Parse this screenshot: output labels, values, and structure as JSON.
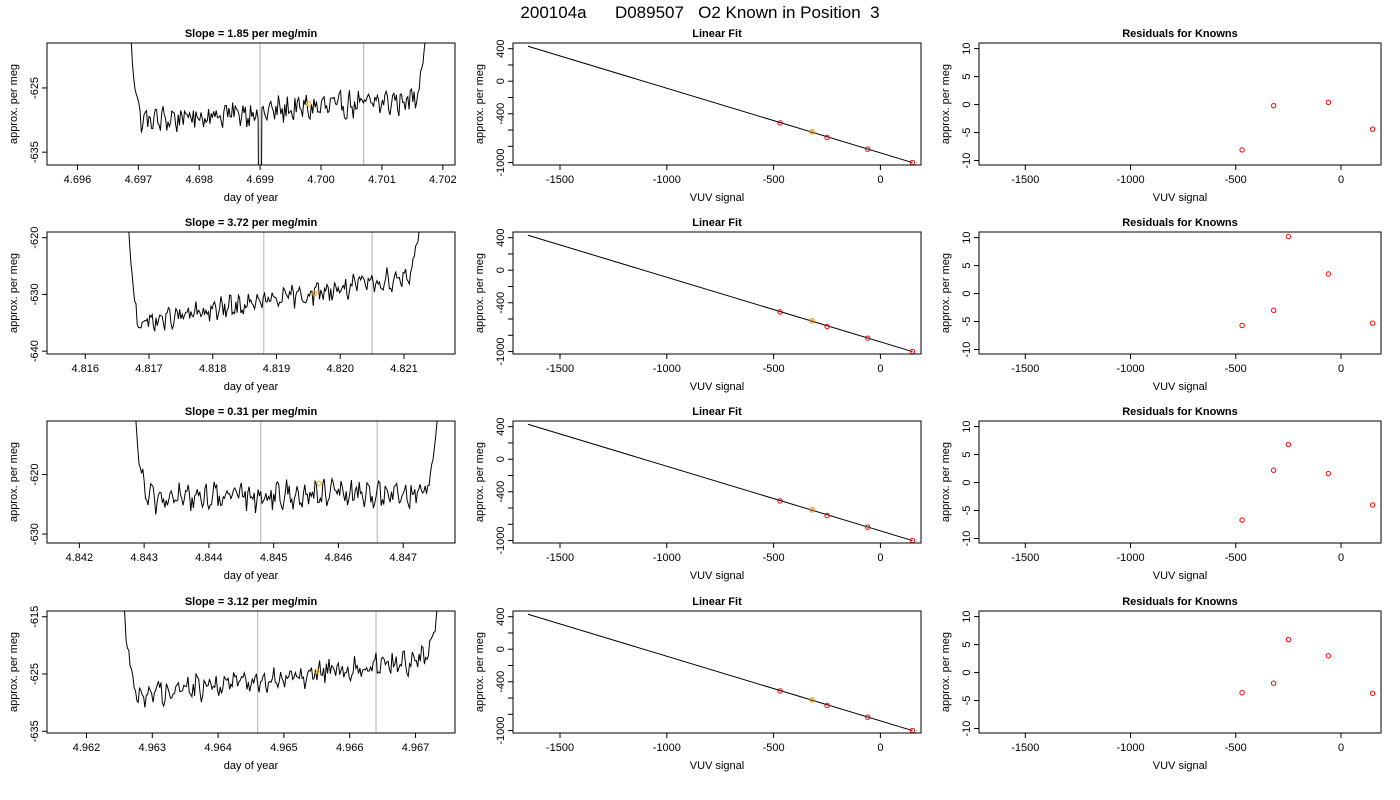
{
  "figure": {
    "title": "200104a      D089507   O2 Known in Position  3"
  },
  "colors": {
    "trace": "#000000",
    "box": "#000000",
    "window_line": "#bebebe",
    "mean_point": "#ffa500",
    "known_point": "#ff0000",
    "fit_point": "#ff0000"
  },
  "chart_data": [
    {
      "type": "line",
      "row": 1,
      "col": 1,
      "title": "Slope =  1.85  per meg/min",
      "xlabel": "day of year",
      "ylabel": "approx. per meg",
      "xlim": [
        4.6955,
        4.7022
      ],
      "ylim": [
        -637,
        -618
      ],
      "xticks": [
        4.696,
        4.697,
        4.698,
        4.699,
        4.7,
        4.701,
        4.702
      ],
      "xtick_labels": [
        "4.696",
        "4.697",
        "4.698",
        "4.699",
        "4.700",
        "4.701",
        "4.702"
      ],
      "yticks": [
        -635,
        -625
      ],
      "ytick_labels": [
        "-635",
        "-625"
      ],
      "vlines": [
        4.699,
        4.7007
      ],
      "mean_point": [
        4.6998,
        -627.5
      ],
      "trace_range": [
        4.6968,
        4.7018
      ],
      "trace_base": -628.5,
      "trace_trend": 1.85,
      "trace_amp": 1.6,
      "trace_start": -605,
      "trace_end": -605,
      "trace_dip": [
        4.699,
        -660
      ]
    },
    {
      "type": "scatter",
      "row": 1,
      "col": 2,
      "title": "Linear Fit",
      "xlabel": "VUV signal",
      "ylabel": "approx. per meg",
      "xlim": [
        -1720,
        190
      ],
      "ylim": [
        -1030,
        470
      ],
      "xticks": [
        -1500,
        -1000,
        -500,
        0
      ],
      "xtick_labels": [
        "-1500",
        "-1000",
        "-500",
        "0"
      ],
      "yticks": [
        -1000,
        -800,
        -600,
        -400,
        -200,
        0,
        200,
        400
      ],
      "ytick_labels": [
        "-1000",
        "",
        "",
        "-400",
        "",
        "0",
        "",
        "400"
      ],
      "fit_line": [
        [
          -1650,
          430
        ],
        [
          150,
          -1000
        ]
      ],
      "points": [
        [
          -470,
          -513
        ],
        [
          -320,
          -622
        ],
        [
          -250,
          -692
        ],
        [
          -60,
          -835
        ],
        [
          150,
          -1000
        ]
      ],
      "highlight_point": [
        -320,
        -622
      ]
    },
    {
      "type": "scatter",
      "row": 1,
      "col": 3,
      "title": "Residuals for Knowns",
      "xlabel": "VUV signal",
      "ylabel": "approx. per meg",
      "xlim": [
        -1720,
        190
      ],
      "ylim": [
        -10.8,
        11
      ],
      "xticks": [
        -1500,
        -1000,
        -500,
        0
      ],
      "xtick_labels": [
        "-1500",
        "-1000",
        "-500",
        "0"
      ],
      "yticks": [
        -10,
        -5,
        0,
        5,
        10
      ],
      "ytick_labels": [
        "-10",
        "-5",
        "0",
        "5",
        "10"
      ],
      "points": [
        [
          -470,
          -8.1
        ],
        [
          -320,
          -0.2
        ],
        [
          -60,
          0.4
        ],
        [
          150,
          -4.4
        ]
      ]
    },
    {
      "type": "line",
      "row": 2,
      "col": 1,
      "title": "Slope =  3.72  per meg/min",
      "xlabel": "day of year",
      "ylabel": "approx. per meg",
      "xlim": [
        4.8154,
        4.8218
      ],
      "ylim": [
        -640.5,
        -619
      ],
      "xticks": [
        4.816,
        4.817,
        4.818,
        4.819,
        4.82,
        4.821
      ],
      "xtick_labels": [
        "4.816",
        "4.817",
        "4.818",
        "4.819",
        "4.820",
        "4.821"
      ],
      "yticks": [
        -640,
        -630,
        -620
      ],
      "ytick_labels": [
        "-640",
        "-630",
        "-620"
      ],
      "vlines": [
        4.8188,
        4.8205
      ],
      "mean_point": [
        4.8196,
        -629.8
      ],
      "trace_range": [
        4.8166,
        4.8213
      ],
      "trace_base": -631.0,
      "trace_trend": 4.6,
      "trace_amp": 1.5,
      "trace_start": -600,
      "trace_end": -612,
      "trace_dip": null
    },
    {
      "type": "scatter",
      "row": 2,
      "col": 2,
      "title": "Linear Fit",
      "xlabel": "VUV signal",
      "ylabel": "approx. per meg",
      "xlim": [
        -1720,
        190
      ],
      "ylim": [
        -1030,
        470
      ],
      "xticks": [
        -1500,
        -1000,
        -500,
        0
      ],
      "xtick_labels": [
        "-1500",
        "-1000",
        "-500",
        "0"
      ],
      "yticks": [
        -1000,
        -800,
        -600,
        -400,
        -200,
        0,
        200,
        400
      ],
      "ytick_labels": [
        "-1000",
        "",
        "",
        "-400",
        "",
        "0",
        "",
        "400"
      ],
      "fit_line": [
        [
          -1650,
          430
        ],
        [
          150,
          -1000
        ]
      ],
      "points": [
        [
          -470,
          -513
        ],
        [
          -320,
          -622
        ],
        [
          -250,
          -692
        ],
        [
          -60,
          -835
        ],
        [
          150,
          -1000
        ]
      ],
      "highlight_point": [
        -320,
        -622
      ]
    },
    {
      "type": "scatter",
      "row": 2,
      "col": 3,
      "title": "Residuals for Knowns",
      "xlabel": "VUV signal",
      "ylabel": "approx. per meg",
      "xlim": [
        -1720,
        190
      ],
      "ylim": [
        -10.8,
        11
      ],
      "xticks": [
        -1500,
        -1000,
        -500,
        0
      ],
      "xtick_labels": [
        "-1500",
        "-1000",
        "-500",
        "0"
      ],
      "yticks": [
        -10,
        -5,
        0,
        5,
        10
      ],
      "ytick_labels": [
        "-10",
        "-5",
        "0",
        "5",
        "10"
      ],
      "points": [
        [
          -470,
          -5.7
        ],
        [
          -320,
          -3.0
        ],
        [
          -250,
          10.2
        ],
        [
          -60,
          3.5
        ],
        [
          150,
          -5.3
        ]
      ]
    },
    {
      "type": "line",
      "row": 3,
      "col": 1,
      "title": "Slope =  0.31  per meg/min",
      "xlabel": "day of year",
      "ylabel": "approx. per meg",
      "xlim": [
        4.8415,
        4.8478
      ],
      "ylim": [
        -631.5,
        -611
      ],
      "xticks": [
        4.842,
        4.843,
        4.844,
        4.845,
        4.846,
        4.847
      ],
      "xtick_labels": [
        "4.842",
        "4.843",
        "4.844",
        "4.845",
        "4.846",
        "4.847"
      ],
      "yticks": [
        -630,
        -620
      ],
      "ytick_labels": [
        "-630",
        "-620"
      ],
      "vlines": [
        4.8448,
        4.8466
      ],
      "mean_point": [
        4.8457,
        -621.5
      ],
      "trace_range": [
        4.8428,
        4.8476
      ],
      "trace_base": -623.5,
      "trace_trend": 0.6,
      "trace_amp": 1.8,
      "trace_start": -600,
      "trace_end": -600,
      "trace_dip": null
    },
    {
      "type": "scatter",
      "row": 3,
      "col": 2,
      "title": "Linear Fit",
      "xlabel": "VUV signal",
      "ylabel": "approx. per meg",
      "xlim": [
        -1720,
        190
      ],
      "ylim": [
        -1030,
        470
      ],
      "xticks": [
        -1500,
        -1000,
        -500,
        0
      ],
      "xtick_labels": [
        "-1500",
        "-1000",
        "-500",
        "0"
      ],
      "yticks": [
        -1000,
        -800,
        -600,
        -400,
        -200,
        0,
        200,
        400
      ],
      "ytick_labels": [
        "-1000",
        "",
        "",
        "-400",
        "",
        "0",
        "",
        "400"
      ],
      "fit_line": [
        [
          -1650,
          430
        ],
        [
          150,
          -1000
        ]
      ],
      "points": [
        [
          -470,
          -513
        ],
        [
          -320,
          -622
        ],
        [
          -250,
          -692
        ],
        [
          -60,
          -835
        ],
        [
          150,
          -1000
        ]
      ],
      "highlight_point": [
        -320,
        -622
      ]
    },
    {
      "type": "scatter",
      "row": 3,
      "col": 3,
      "title": "Residuals for Knowns",
      "xlabel": "VUV signal",
      "ylabel": "approx. per meg",
      "xlim": [
        -1720,
        190
      ],
      "ylim": [
        -10.8,
        11
      ],
      "xticks": [
        -1500,
        -1000,
        -500,
        0
      ],
      "xtick_labels": [
        "-1500",
        "-1000",
        "-500",
        "0"
      ],
      "yticks": [
        -10,
        -5,
        0,
        5,
        10
      ],
      "ytick_labels": [
        "-10",
        "-5",
        "0",
        "5",
        "10"
      ],
      "points": [
        [
          -470,
          -6.7
        ],
        [
          -320,
          2.2
        ],
        [
          -250,
          6.8
        ],
        [
          -60,
          1.6
        ],
        [
          150,
          -4.0
        ]
      ]
    },
    {
      "type": "line",
      "row": 4,
      "col": 1,
      "title": "Slope =  3.12  per meg/min",
      "xlabel": "day of year",
      "ylabel": "approx. per meg",
      "xlim": [
        4.9614,
        4.9676
      ],
      "ylim": [
        -635.3,
        -614
      ],
      "xticks": [
        4.962,
        4.963,
        4.964,
        4.965,
        4.966,
        4.967
      ],
      "xtick_labels": [
        "4.962",
        "4.963",
        "4.964",
        "4.965",
        "4.966",
        "4.967"
      ],
      "yticks": [
        -635,
        -625,
        -615
      ],
      "ytick_labels": [
        "-635",
        "-625",
        "-615"
      ],
      "vlines": [
        4.9646,
        4.9664
      ],
      "mean_point": [
        4.9655,
        -624.5
      ],
      "trace_range": [
        4.9625,
        4.9674
      ],
      "trace_base": -625.5,
      "trace_trend": 3.5,
      "trace_amp": 1.7,
      "trace_start": -600,
      "trace_end": -607,
      "trace_dip": null
    },
    {
      "type": "scatter",
      "row": 4,
      "col": 2,
      "title": "Linear Fit",
      "xlabel": "VUV signal",
      "ylabel": "approx. per meg",
      "xlim": [
        -1720,
        190
      ],
      "ylim": [
        -1030,
        470
      ],
      "xticks": [
        -1500,
        -1000,
        -500,
        0
      ],
      "xtick_labels": [
        "-1500",
        "-1000",
        "-500",
        "0"
      ],
      "yticks": [
        -1000,
        -800,
        -600,
        -400,
        -200,
        0,
        200,
        400
      ],
      "ytick_labels": [
        "-1000",
        "",
        "",
        "-400",
        "",
        "0",
        "",
        "400"
      ],
      "fit_line": [
        [
          -1650,
          430
        ],
        [
          150,
          -1000
        ]
      ],
      "points": [
        [
          -470,
          -513
        ],
        [
          -320,
          -622
        ],
        [
          -250,
          -692
        ],
        [
          -60,
          -835
        ],
        [
          150,
          -1000
        ]
      ],
      "highlight_point": [
        -320,
        -622
      ]
    },
    {
      "type": "scatter",
      "row": 4,
      "col": 3,
      "title": "Residuals for Knowns",
      "xlabel": "VUV signal",
      "ylabel": "approx. per meg",
      "xlim": [
        -1720,
        190
      ],
      "ylim": [
        -10.8,
        11
      ],
      "xticks": [
        -1500,
        -1000,
        -500,
        0
      ],
      "xtick_labels": [
        "-1500",
        "-1000",
        "-500",
        "0"
      ],
      "yticks": [
        -10,
        -5,
        0,
        5,
        10
      ],
      "ytick_labels": [
        "-10",
        "-5",
        "0",
        "5",
        "10"
      ],
      "points": [
        [
          -470,
          -3.6
        ],
        [
          -320,
          -1.9
        ],
        [
          -250,
          5.9
        ],
        [
          -60,
          3.0
        ],
        [
          150,
          -3.7
        ]
      ]
    }
  ]
}
